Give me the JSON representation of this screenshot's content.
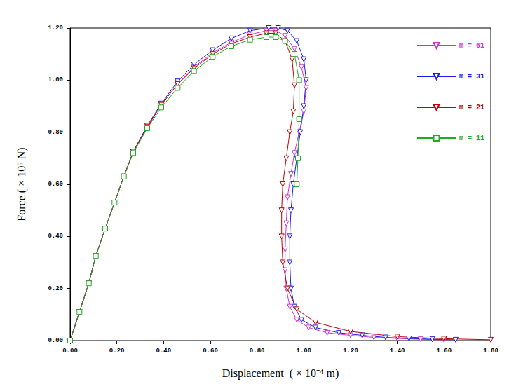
{
  "chart_data": {
    "type": "line",
    "x_label": "Displacement  ( × 10⁻⁴ m)",
    "y_label": "Force ( × 10⁵ N)",
    "xlim": [
      0,
      1.8
    ],
    "ylim": [
      0,
      1.2
    ],
    "xticks": [
      {
        "value": 0,
        "label": "0.00"
      },
      {
        "value": 0.2,
        "label": "0.20"
      },
      {
        "value": 0.4,
        "label": "0.40"
      },
      {
        "value": 0.6,
        "label": "0.60"
      },
      {
        "value": 0.8,
        "label": "0.80"
      },
      {
        "value": 1.0,
        "label": "1.00"
      },
      {
        "value": 1.2,
        "label": "1.20"
      },
      {
        "value": 1.4,
        "label": "1.40"
      },
      {
        "value": 1.6,
        "label": "1.60"
      },
      {
        "value": 1.8,
        "label": "1.80"
      }
    ],
    "yticks": [
      {
        "value": 0,
        "label": "0.00"
      },
      {
        "value": 0.2,
        "label": "0.20"
      },
      {
        "value": 0.4,
        "label": "0.40"
      },
      {
        "value": 0.6,
        "label": "0.60"
      },
      {
        "value": 0.8,
        "label": "0.80"
      },
      {
        "value": 1.0,
        "label": "1.00"
      },
      {
        "value": 1.2,
        "label": "1.20"
      }
    ],
    "grid": false,
    "legend": "upper right",
    "series": [
      {
        "name": "m = 61",
        "color": "#cc33cc",
        "marker": "triangle-down",
        "x": [
          0,
          0.04,
          0.08,
          0.11,
          0.15,
          0.19,
          0.23,
          0.27,
          0.33,
          0.39,
          0.46,
          0.53,
          0.61,
          0.69,
          0.77,
          0.84,
          0.88,
          0.92,
          0.96,
          0.99,
          1.01,
          1.0,
          0.98,
          0.96,
          0.945,
          0.93,
          0.925,
          0.92,
          0.92,
          0.925,
          0.94,
          0.97,
          1.02,
          1.1,
          1.2,
          1.3,
          1.4,
          1.5,
          1.6
        ],
        "values": [
          0,
          0.11,
          0.22,
          0.325,
          0.43,
          0.53,
          0.63,
          0.725,
          0.82,
          0.905,
          0.985,
          1.05,
          1.105,
          1.145,
          1.175,
          1.19,
          1.19,
          1.17,
          1.12,
          1.05,
          0.97,
          0.88,
          0.8,
          0.72,
          0.64,
          0.55,
          0.45,
          0.35,
          0.27,
          0.2,
          0.13,
          0.08,
          0.05,
          0.03,
          0.02,
          0.012,
          0.008,
          0.005,
          0.003
        ]
      },
      {
        "name": "m = 31",
        "color": "#1a1aee",
        "marker": "triangle-down",
        "x": [
          0,
          0.04,
          0.08,
          0.11,
          0.15,
          0.19,
          0.23,
          0.27,
          0.33,
          0.39,
          0.46,
          0.53,
          0.61,
          0.69,
          0.77,
          0.85,
          0.89,
          0.93,
          0.97,
          1.0,
          1.01,
          1.0,
          0.985,
          0.97,
          0.955,
          0.945,
          0.94,
          0.94,
          0.945,
          0.96,
          0.99,
          1.05,
          1.15,
          1.25,
          1.35,
          1.45,
          1.55,
          1.65
        ],
        "values": [
          0,
          0.11,
          0.22,
          0.325,
          0.43,
          0.53,
          0.63,
          0.725,
          0.825,
          0.91,
          0.995,
          1.06,
          1.115,
          1.16,
          1.19,
          1.2,
          1.2,
          1.19,
          1.15,
          1.08,
          1.0,
          0.9,
          0.8,
          0.7,
          0.6,
          0.5,
          0.4,
          0.3,
          0.2,
          0.13,
          0.08,
          0.05,
          0.03,
          0.02,
          0.012,
          0.008,
          0.005,
          0.003
        ]
      },
      {
        "name": "m = 21",
        "color": "#c00000",
        "marker": "triangle-down",
        "x": [
          0,
          0.04,
          0.08,
          0.11,
          0.15,
          0.19,
          0.23,
          0.27,
          0.33,
          0.39,
          0.46,
          0.53,
          0.61,
          0.69,
          0.77,
          0.84,
          0.88,
          0.92,
          0.95,
          0.96,
          0.955,
          0.94,
          0.925,
          0.91,
          0.905,
          0.905,
          0.91,
          0.93,
          0.97,
          1.05,
          1.2,
          1.4,
          1.6,
          1.8
        ],
        "values": [
          0,
          0.11,
          0.22,
          0.325,
          0.43,
          0.53,
          0.63,
          0.725,
          0.82,
          0.905,
          0.985,
          1.045,
          1.1,
          1.14,
          1.165,
          1.18,
          1.18,
          1.15,
          1.08,
          0.98,
          0.88,
          0.8,
          0.7,
          0.6,
          0.5,
          0.4,
          0.3,
          0.2,
          0.12,
          0.07,
          0.035,
          0.015,
          0.007,
          0.003
        ]
      },
      {
        "name": "m = 11",
        "color": "#22aa22",
        "marker": "square",
        "x": [
          0,
          0.04,
          0.08,
          0.11,
          0.15,
          0.19,
          0.23,
          0.27,
          0.33,
          0.39,
          0.46,
          0.53,
          0.61,
          0.69,
          0.77,
          0.84,
          0.88,
          0.92,
          0.96,
          0.98,
          0.98,
          0.975,
          0.97
        ],
        "values": [
          0,
          0.11,
          0.22,
          0.325,
          0.43,
          0.53,
          0.63,
          0.72,
          0.815,
          0.895,
          0.97,
          1.035,
          1.09,
          1.13,
          1.155,
          1.165,
          1.165,
          1.15,
          1.1,
          1.0,
          0.85,
          0.7,
          0.6
        ]
      }
    ]
  }
}
